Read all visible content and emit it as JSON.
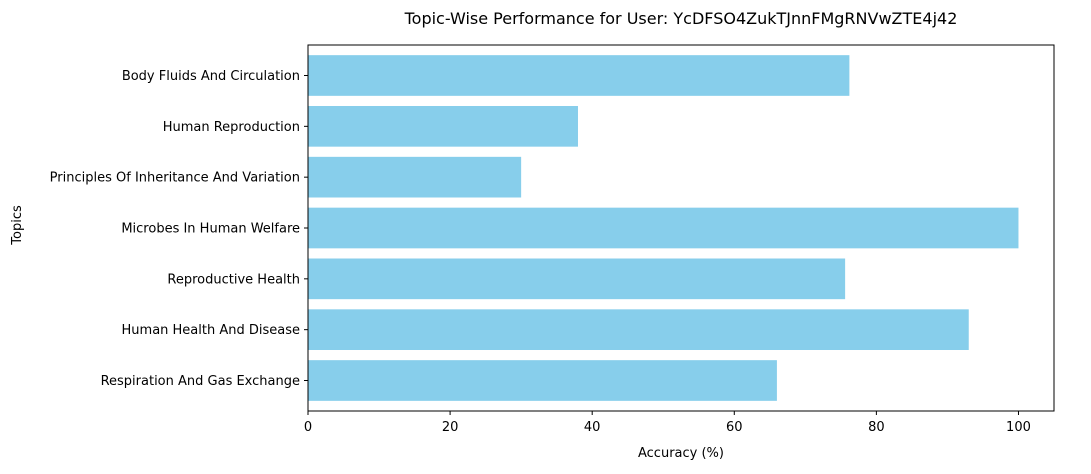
{
  "chart_data": {
    "type": "bar",
    "orientation": "horizontal",
    "title": "Topic-Wise Performance for User: YcDFSO4ZukTJnnFMgRNVwZTE4j42",
    "xlabel": "Accuracy (%)",
    "ylabel": "Topics",
    "xlim": [
      0,
      105
    ],
    "x_ticks": [
      0,
      20,
      40,
      60,
      80,
      100
    ],
    "grid": false,
    "bar_color": "#87CEEB",
    "categories": [
      "Body Fluids And Circulation",
      "Human Reproduction",
      "Principles Of Inheritance And Variation",
      "Microbes In Human Welfare",
      "Reproductive Health",
      "Human Health And Disease",
      "Respiration And Gas Exchange"
    ],
    "values": [
      76.2,
      38.0,
      30.0,
      100.0,
      75.6,
      93.0,
      66.0
    ]
  }
}
